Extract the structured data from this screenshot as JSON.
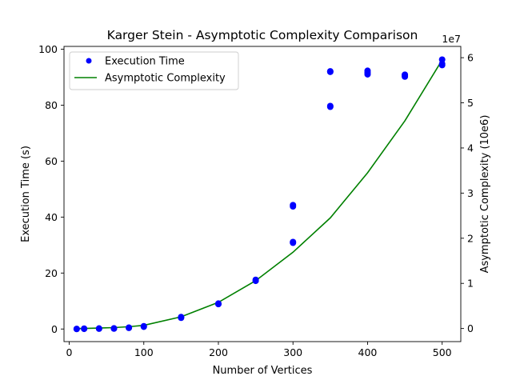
{
  "chart_data": {
    "type": "scatter",
    "title": "Karger Stein - Asymptotic Complexity Comparison",
    "xlabel": "Number of Vertices",
    "ylabel": "Execution Time (s)",
    "ylabel_right": "Asymptotic Complexity (10e6)",
    "right_axis_offset_text": "1e7",
    "xlim": [
      -7,
      525
    ],
    "ylim": [
      -4.5,
      101
    ],
    "ylim_right": [
      -2900000,
      62500000
    ],
    "xticks": [
      0,
      100,
      200,
      300,
      400,
      500
    ],
    "yticks": [
      0,
      20,
      40,
      60,
      80,
      100
    ],
    "yticks_right": [
      0,
      10000000,
      20000000,
      30000000,
      40000000,
      50000000,
      60000000
    ],
    "yticks_right_labels": [
      "0",
      "1",
      "2",
      "3",
      "4",
      "5",
      "6"
    ],
    "grid": false,
    "legend_position": "top-left",
    "series": [
      {
        "name": "Execution Time",
        "kind": "scatter",
        "axis": "left",
        "color": "#0000ff",
        "points": [
          [
            10,
            0.0
          ],
          [
            10,
            0.05
          ],
          [
            20,
            0.05
          ],
          [
            20,
            0.15
          ],
          [
            40,
            0.1
          ],
          [
            40,
            0.2
          ],
          [
            60,
            0.15
          ],
          [
            60,
            0.25
          ],
          [
            80,
            0.4
          ],
          [
            80,
            0.5
          ],
          [
            100,
            0.8
          ],
          [
            100,
            1.0
          ],
          [
            150,
            4.0
          ],
          [
            150,
            4.3
          ],
          [
            200,
            8.9
          ],
          [
            200,
            9.1
          ],
          [
            250,
            17.2
          ],
          [
            250,
            17.6
          ],
          [
            300,
            30.8
          ],
          [
            300,
            31.1
          ],
          [
            300,
            43.8
          ],
          [
            300,
            44.3
          ],
          [
            350,
            79.4
          ],
          [
            350,
            79.7
          ],
          [
            350,
            91.9
          ],
          [
            350,
            92.1
          ],
          [
            400,
            91.0
          ],
          [
            400,
            91.6
          ],
          [
            400,
            92.3
          ],
          [
            450,
            90.2
          ],
          [
            450,
            90.6
          ],
          [
            450,
            90.9
          ],
          [
            500,
            94.3
          ],
          [
            500,
            94.8
          ],
          [
            500,
            96.3
          ]
        ]
      },
      {
        "name": "Asymptotic Complexity",
        "kind": "line",
        "axis": "right",
        "color": "#008000",
        "points": [
          [
            10,
            0
          ],
          [
            20,
            20000
          ],
          [
            40,
            100000
          ],
          [
            60,
            200000
          ],
          [
            80,
            400000
          ],
          [
            100,
            700000
          ],
          [
            150,
            2600000
          ],
          [
            200,
            5800000
          ],
          [
            250,
            10600000
          ],
          [
            300,
            16900000
          ],
          [
            350,
            24500000
          ],
          [
            400,
            34500000
          ],
          [
            450,
            46000000
          ],
          [
            500,
            59500000
          ]
        ]
      }
    ]
  }
}
